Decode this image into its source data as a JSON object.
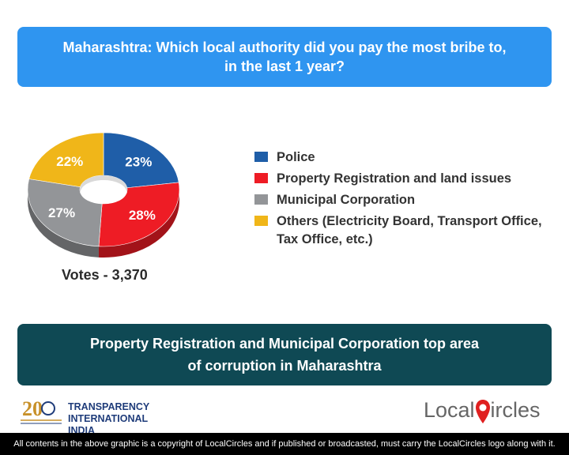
{
  "title": {
    "line1": "Maharashtra: Which local authority did you pay the most bribe to,",
    "line2": "in the last 1 year?"
  },
  "chart_data": {
    "type": "pie",
    "style": "3d-donut",
    "slices": [
      {
        "label": "Police",
        "value": 23,
        "display": "23%",
        "color": "#1f5ea8"
      },
      {
        "label": "Property Registration and land issues",
        "value": 28,
        "display": "28%",
        "color": "#ee1c25"
      },
      {
        "label": "Municipal Corporation",
        "value": 27,
        "display": "27%",
        "color": "#939598"
      },
      {
        "label": "Others (Electricity Board, Transport Office, Tax Office, etc.)",
        "value": 22,
        "display": "22%",
        "color": "#f0b619"
      }
    ],
    "legend_placement": "right",
    "votes": "Votes - 3,370"
  },
  "legend": {
    "items": [
      {
        "label": "Police",
        "color": "#1f5ea8"
      },
      {
        "label": "Property Registration and land issues",
        "color": "#ee1c25"
      },
      {
        "label": "Municipal Corporation",
        "color": "#939598"
      },
      {
        "label": "Others (Electricity Board, Transport Office, Tax Office, etc.)",
        "color": "#f0b619"
      }
    ]
  },
  "summary": {
    "line1": "Property Registration and Municipal Corporation top area",
    "line2": "of corruption in Maharashtra"
  },
  "logos": {
    "ti_line1": "TRANSPARENCY",
    "ti_line2": "INTERNATIONAL INDIA",
    "ti_years": "20",
    "lc_part1": "Local",
    "lc_part2": "ircles"
  },
  "footer": "All contents in the above graphic is a copyright of LocalCircles and if published or broadcasted, must carry the LocalCircles logo along with it.",
  "colors": {
    "title_bg": "#2f95f0",
    "summary_bg": "#0f4954"
  }
}
